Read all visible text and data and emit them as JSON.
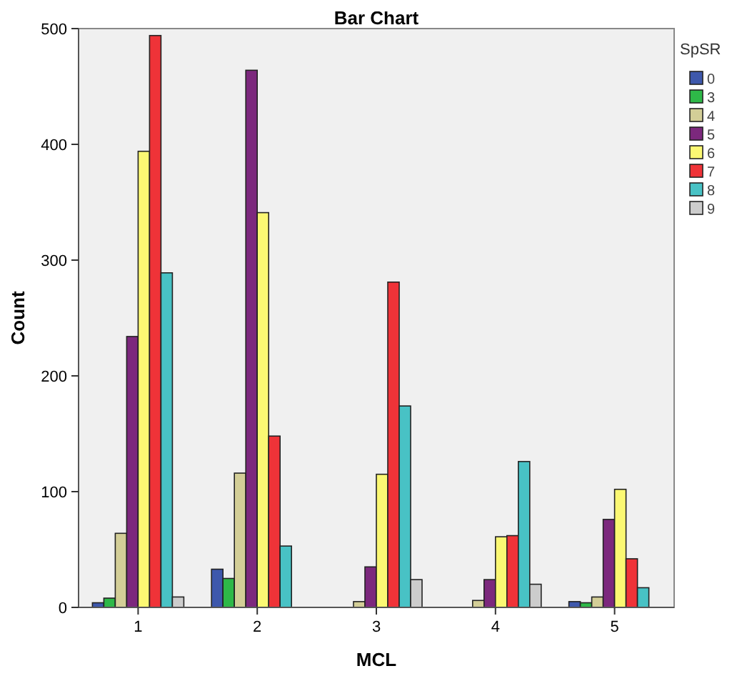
{
  "chart_data": {
    "type": "bar",
    "title": "Bar Chart",
    "xlabel": "MCL",
    "ylabel": "Count",
    "legend_title": "SpSR",
    "legend": "right",
    "categories": [
      "1",
      "2",
      "3",
      "4",
      "5"
    ],
    "ylim": [
      0,
      500
    ],
    "yticks": [
      0,
      100,
      200,
      300,
      400,
      500
    ],
    "series": [
      {
        "name": "0",
        "color": "#3e58ac",
        "values": [
          4,
          33,
          null,
          null,
          5
        ]
      },
      {
        "name": "3",
        "color": "#2eb848",
        "values": [
          8,
          25,
          null,
          null,
          4
        ]
      },
      {
        "name": "4",
        "color": "#d3ce97",
        "values": [
          64,
          116,
          5,
          6,
          9
        ]
      },
      {
        "name": "5",
        "color": "#7c287d",
        "values": [
          234,
          464,
          35,
          24,
          76
        ]
      },
      {
        "name": "6",
        "color": "#fbf873",
        "values": [
          394,
          341,
          115,
          61,
          102
        ]
      },
      {
        "name": "7",
        "color": "#ef3338",
        "values": [
          494,
          148,
          281,
          62,
          42
        ]
      },
      {
        "name": "8",
        "color": "#48c2c5",
        "values": [
          289,
          53,
          174,
          126,
          17
        ]
      },
      {
        "name": "9",
        "color": "#cccccc",
        "values": [
          9,
          null,
          24,
          20,
          null
        ]
      }
    ]
  }
}
